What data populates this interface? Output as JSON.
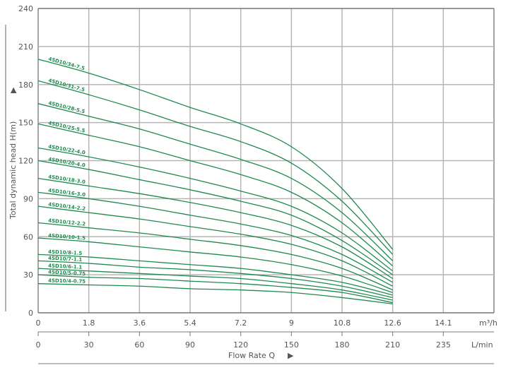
{
  "chart_data": {
    "type": "line",
    "title": "",
    "ylabel": "Total dynamic head H(m)",
    "xlabel": "Flow Rate Q",
    "ylim": [
      0,
      240
    ],
    "yticks": [
      0,
      30,
      60,
      90,
      120,
      150,
      180,
      210,
      240
    ],
    "x_axis_primary": {
      "unit": "m³/h",
      "ticks": [
        "0",
        "1.8",
        "3.6",
        "5.4",
        "7.2",
        "9",
        "10.8",
        "12.6",
        "14.1"
      ]
    },
    "x_axis_secondary": {
      "unit": "L/min",
      "ticks": [
        "0",
        "30",
        "60",
        "90",
        "120",
        "150",
        "180",
        "210",
        "235"
      ]
    },
    "grid": true,
    "line_color": "#1e8a4e",
    "x": [
      0,
      1.8,
      3.6,
      5.4,
      7.2,
      9,
      10.8,
      12.6
    ],
    "series": [
      {
        "name": "4SD10/34-7.5",
        "values": [
          200,
          189,
          176,
          162,
          149,
          131,
          98,
          50
        ]
      },
      {
        "name": "4SD10/31-7.5",
        "values": [
          183,
          172,
          160,
          147,
          135,
          118,
          88,
          46
        ]
      },
      {
        "name": "4SD10/28-5.5",
        "values": [
          165,
          155,
          145,
          133,
          121,
          106,
          79,
          41
        ]
      },
      {
        "name": "4SD10/25-5.5",
        "values": [
          149,
          140,
          131,
          120,
          109,
          95,
          71,
          37
        ]
      },
      {
        "name": "4SD10/22-4.0",
        "values": [
          130,
          123,
          115,
          106,
          96,
          84,
          63,
          33
        ]
      },
      {
        "name": "4SD10/20-4.0",
        "values": [
          120,
          113,
          105,
          97,
          88,
          77,
          57,
          30
        ]
      },
      {
        "name": "4SD10/18-3.0",
        "values": [
          106,
          100,
          94,
          87,
          79,
          69,
          52,
          27
        ]
      },
      {
        "name": "4SD10/16-3.0",
        "values": [
          95,
          90,
          84,
          77,
          70,
          61,
          46,
          24
        ]
      },
      {
        "name": "4SD10/14-2.2",
        "values": [
          84,
          79,
          74,
          68,
          62,
          54,
          41,
          21
        ]
      },
      {
        "name": "4SD10/12-2.2",
        "values": [
          71,
          67,
          63,
          58,
          53,
          46,
          35,
          18
        ]
      },
      {
        "name": "4SD10/10-1.5",
        "values": [
          59,
          56,
          52,
          48,
          44,
          38,
          29,
          16
        ]
      },
      {
        "name": "4SD10/8-1.5",
        "values": [
          46,
          44,
          41,
          38,
          35,
          30,
          24,
          14
        ]
      },
      {
        "name": "4SD10/7-1.1",
        "values": [
          41,
          39,
          36,
          34,
          31,
          27,
          21,
          12
        ]
      },
      {
        "name": "4SD10/6-1.1",
        "values": [
          35,
          33,
          31,
          29,
          27,
          23,
          18,
          10
        ]
      },
      {
        "name": "4SD10/5-0.75",
        "values": [
          30,
          28,
          27,
          25,
          23,
          20,
          16,
          8
        ]
      },
      {
        "name": "4SD10/4-0.75",
        "values": [
          23,
          22,
          21,
          19,
          18,
          16,
          12,
          7
        ]
      }
    ]
  },
  "axes": {
    "ylabel": "Total dynamic head H(m)",
    "xlabel": "Flow Rate Q",
    "x_unit_primary": "m³/h",
    "x_unit_secondary": "L/min"
  }
}
